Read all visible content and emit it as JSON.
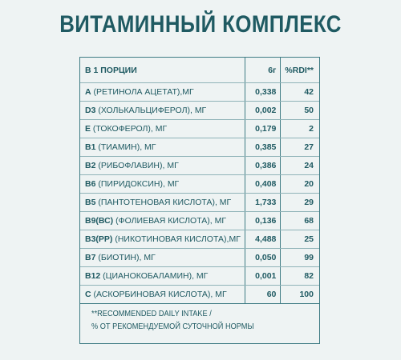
{
  "title": "ВИТАМИННЫЙ КОМПЛЕКС",
  "table": {
    "header": {
      "name": "В 1 ПОРЦИИ",
      "amount": "6г",
      "rdi": "%RDI**"
    },
    "rows": [
      {
        "code": "А",
        "desc": " (РЕТИНОЛА АЦЕТАТ),МГ",
        "amount": "0,338",
        "rdi": "42"
      },
      {
        "code": "D3",
        "desc": " (ХОЛЬКАЛЬЦИФЕРОЛ), МГ",
        "amount": "0,002",
        "rdi": "50"
      },
      {
        "code": "E",
        "desc": " (ТОКОФЕРОЛ), МГ",
        "amount": "0,179",
        "rdi": "2"
      },
      {
        "code": "В1",
        "desc": " (ТИАМИН), МГ",
        "amount": "0,385",
        "rdi": "27"
      },
      {
        "code": "В2",
        "desc": " (РИБОФЛАВИН), МГ",
        "amount": "0,386",
        "rdi": "24"
      },
      {
        "code": "В6",
        "desc": " (ПИРИДОКСИН), МГ",
        "amount": "0,408",
        "rdi": "20"
      },
      {
        "code": "В5",
        "desc": " (ПАНТОТЕНОВАЯ КИСЛОТА), МГ",
        "amount": "1,733",
        "rdi": "29"
      },
      {
        "code": "В9(ВС)",
        "desc": " (ФОЛИЕВАЯ КИСЛОТА), МГ",
        "amount": "0,136",
        "rdi": "68"
      },
      {
        "code": "В3(РР)",
        "desc": " (НИКОТИНОВАЯ КИСЛОТА),МГ",
        "amount": "4,488",
        "rdi": "25"
      },
      {
        "code": "В7",
        "desc": " (БИОТИН), МГ",
        "amount": "0,050",
        "rdi": "99"
      },
      {
        "code": "В12",
        "desc": " (ЦИАНОКОБАЛАМИН), МГ",
        "amount": "0,001",
        "rdi": "82"
      },
      {
        "code": "С",
        "desc": " (АСКОРБИНОВАЯ КИСЛОТА), МГ",
        "amount": "60",
        "rdi": "100"
      }
    ]
  },
  "footnote": {
    "line1": "**RECOMMENDED DAILY INTAKE /",
    "line2": "% ОТ РЕКОМЕНДУЕМОЙ СУТОЧНОЙ НОРМЫ"
  }
}
